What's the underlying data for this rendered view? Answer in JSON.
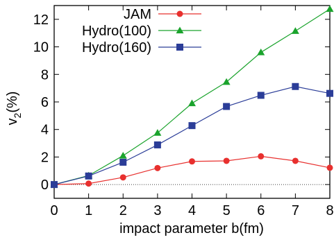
{
  "chart_data": {
    "type": "line",
    "x": [
      0,
      1,
      2,
      3,
      4,
      5,
      6,
      7,
      8
    ],
    "xlabel": "impact parameter b(fm)",
    "ylabel_main": "v",
    "ylabel_sub": "2",
    "ylabel_tail": "(%)",
    "xlim": [
      0,
      8
    ],
    "ylim": [
      -1,
      13
    ],
    "xticks": [
      0,
      1,
      2,
      3,
      4,
      5,
      6,
      7,
      8
    ],
    "yticks": [
      0,
      2,
      4,
      6,
      8,
      10,
      12
    ],
    "legend_position": "top-left",
    "zero_line": true,
    "series": [
      {
        "name": "JAM",
        "color": "#e8302e",
        "marker": "circle",
        "values": [
          0,
          0.07,
          0.52,
          1.2,
          1.68,
          1.72,
          2.05,
          1.72,
          1.22
        ]
      },
      {
        "name": "Hydro(100)",
        "color": "#1aa32c",
        "marker": "triangle",
        "values": [
          0,
          0.65,
          2.1,
          3.75,
          5.9,
          7.45,
          9.6,
          11.15,
          12.75
        ]
      },
      {
        "name": "Hydro(160)",
        "color": "#2b3d98",
        "marker": "square",
        "values": [
          0,
          0.62,
          1.62,
          2.88,
          4.28,
          5.67,
          6.48,
          7.12,
          6.62
        ]
      }
    ]
  }
}
